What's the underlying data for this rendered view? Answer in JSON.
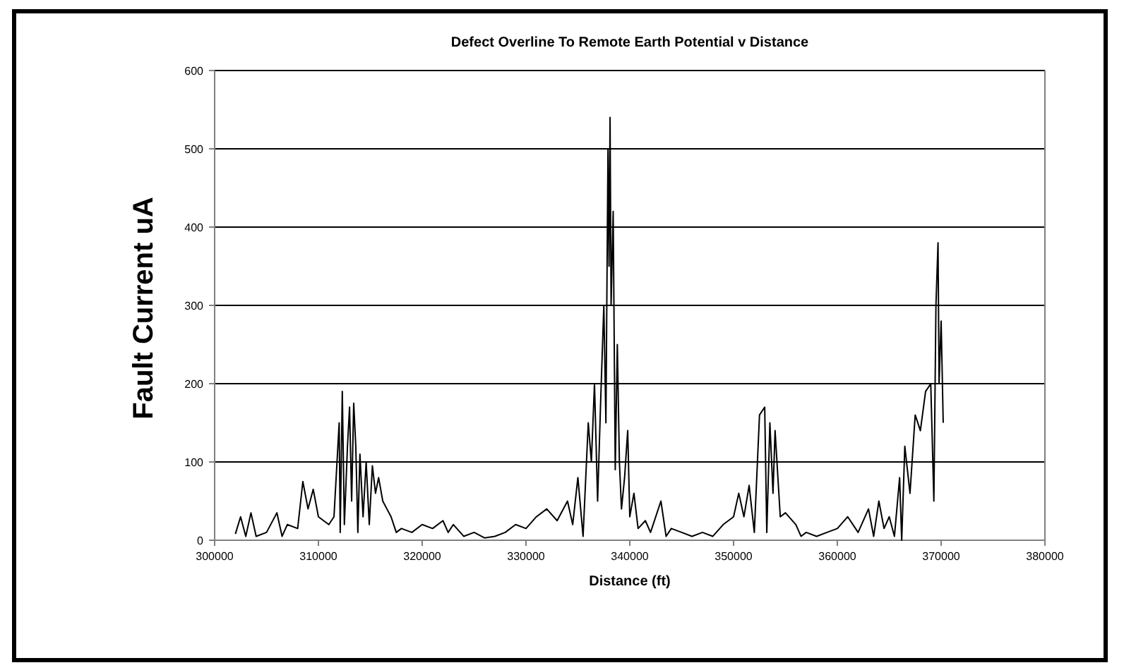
{
  "chart_data": {
    "type": "line",
    "title": "Defect Overline To Remote Earth Potential v Distance",
    "xlabel": "Distance (ft)",
    "ylabel": "Fault Current uA",
    "xlim": [
      300000,
      380000
    ],
    "xticks": [
      300000,
      310000,
      320000,
      330000,
      340000,
      350000,
      360000,
      370000,
      380000
    ],
    "ylim": [
      0,
      600
    ],
    "yticks": [
      0,
      100,
      200,
      300,
      400,
      500,
      600
    ],
    "grid": "y",
    "marker": "none",
    "line_style": "solid",
    "series": [
      {
        "color": "#000000",
        "x": [
          302000,
          302500,
          303000,
          303500,
          304000,
          305000,
          306000,
          306500,
          307000,
          308000,
          308500,
          309000,
          309500,
          310000,
          310500,
          311000,
          311500,
          312000,
          312100,
          312300,
          312500,
          312800,
          313000,
          313200,
          313400,
          313600,
          313800,
          314000,
          314300,
          314600,
          314900,
          315200,
          315500,
          315800,
          316200,
          316600,
          317000,
          317500,
          318000,
          319000,
          320000,
          321000,
          322000,
          322500,
          323000,
          324000,
          325000,
          326000,
          327000,
          328000,
          329000,
          330000,
          331000,
          332000,
          333000,
          334000,
          334500,
          335000,
          335500,
          336000,
          336300,
          336600,
          336900,
          337200,
          337500,
          337700,
          337900,
          338000,
          338100,
          338200,
          338400,
          338600,
          338800,
          339000,
          339200,
          339500,
          339800,
          340000,
          340400,
          340800,
          341500,
          342000,
          343000,
          343500,
          344000,
          345000,
          346000,
          347000,
          348000,
          349000,
          350000,
          350500,
          351000,
          351500,
          352000,
          352500,
          353000,
          353200,
          353500,
          353800,
          354000,
          354500,
          355000,
          356000,
          356500,
          357000,
          358000,
          359000,
          360000,
          361000,
          362000,
          363000,
          363500,
          364000,
          364500,
          365000,
          365500,
          366000,
          366200,
          366500,
          367000,
          367500,
          368000,
          368500,
          369000,
          369300,
          369500,
          369700,
          369800,
          370000,
          370200
        ],
        "values": [
          8,
          30,
          5,
          35,
          5,
          10,
          35,
          5,
          20,
          15,
          75,
          40,
          65,
          30,
          25,
          20,
          30,
          150,
          10,
          190,
          20,
          120,
          170,
          50,
          175,
          120,
          10,
          110,
          30,
          100,
          20,
          95,
          60,
          80,
          50,
          40,
          30,
          10,
          15,
          10,
          20,
          15,
          25,
          10,
          20,
          5,
          10,
          3,
          5,
          10,
          20,
          15,
          30,
          40,
          25,
          50,
          20,
          80,
          5,
          150,
          100,
          200,
          50,
          180,
          300,
          150,
          500,
          350,
          540,
          300,
          420,
          90,
          250,
          100,
          40,
          80,
          140,
          30,
          60,
          15,
          25,
          10,
          50,
          5,
          15,
          10,
          5,
          10,
          5,
          20,
          30,
          60,
          30,
          70,
          10,
          160,
          170,
          10,
          150,
          60,
          140,
          30,
          35,
          20,
          5,
          10,
          5,
          10,
          15,
          30,
          10,
          40,
          5,
          50,
          15,
          30,
          5,
          80,
          0,
          120,
          60,
          160,
          140,
          190,
          200,
          50,
          300,
          380,
          200,
          280,
          150
        ]
      }
    ]
  }
}
